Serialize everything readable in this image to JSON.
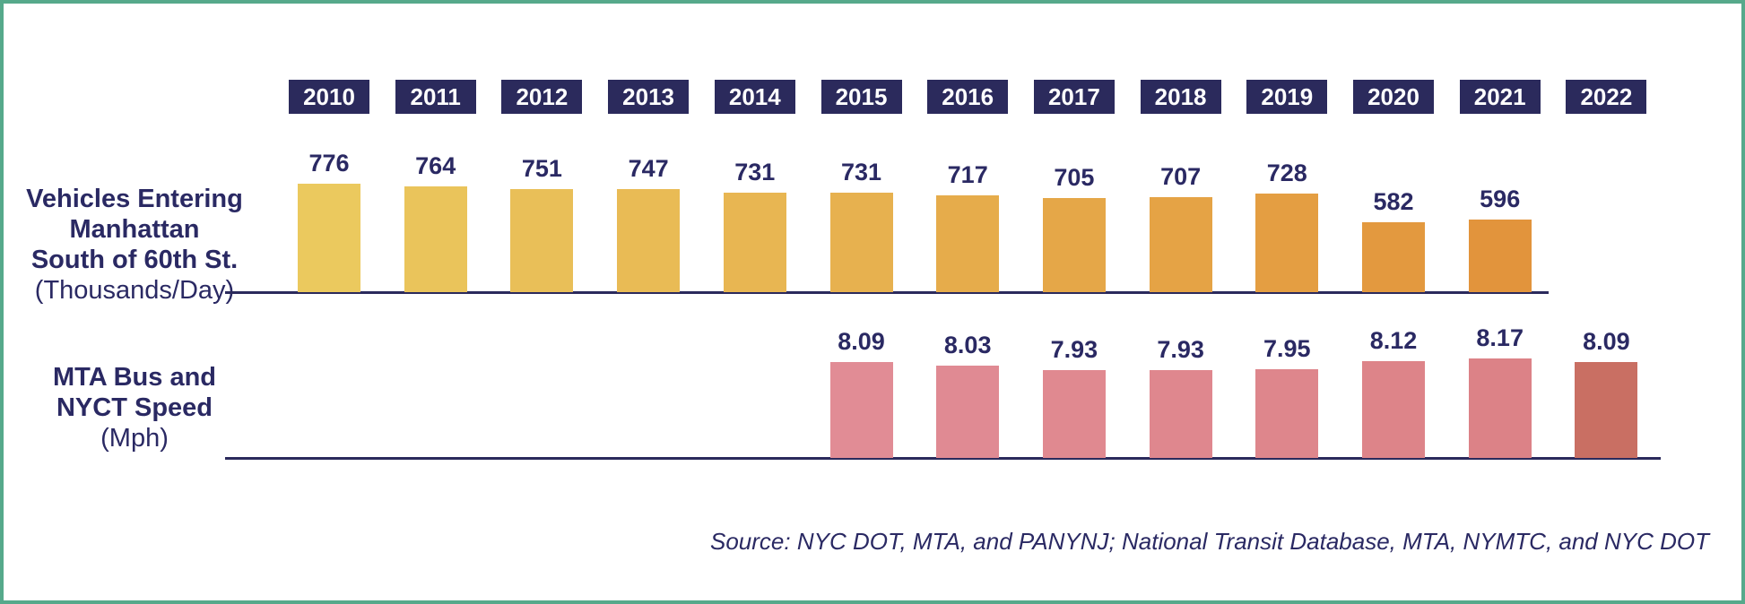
{
  "page": {
    "background_color": "#FFFFFF",
    "border_color": "#56A98B",
    "text_color": "#2A2963",
    "axis_color": "#2B2A5C"
  },
  "years": [
    "2010",
    "2011",
    "2012",
    "2013",
    "2014",
    "2015",
    "2016",
    "2017",
    "2018",
    "2019",
    "2020",
    "2021",
    "2022"
  ],
  "year_badge": {
    "bg_color": "#2B2A5C",
    "text_color": "#FFFFFF"
  },
  "row_labels": [
    {
      "lines": [
        "Vehicles Entering",
        "Manhattan",
        "South of 60th St."
      ],
      "unit": "(Thousands/Day)"
    },
    {
      "lines": [
        "MTA Bus and",
        "NYCT Speed"
      ],
      "unit": "(Mph)"
    }
  ],
  "source_note": "Source: NYC DOT, MTA, and PANYNJ; National Transit Database, MTA, NYMTC, and NYC DOT",
  "chart_data": [
    {
      "type": "bar",
      "title": "Vehicles Entering Manhattan South of 60th St. (Thousands/Day)",
      "categories": [
        "2010",
        "2011",
        "2012",
        "2013",
        "2014",
        "2015",
        "2016",
        "2017",
        "2018",
        "2019",
        "2020",
        "2021"
      ],
      "values": [
        776,
        764,
        751,
        747,
        731,
        731,
        717,
        705,
        707,
        728,
        582,
        596
      ],
      "value_format": "integer",
      "data_labels_position": "above-bars",
      "bar_colors": [
        "#EBC95E",
        "#EAC45B",
        "#E9BF58",
        "#E9BB55",
        "#E8B652",
        "#E7B14F",
        "#E6AC4B",
        "#E5A748",
        "#E5A345",
        "#E49E42",
        "#E3993F",
        "#E2943C"
      ],
      "legend": "none",
      "grid": "off",
      "axis_style": "single horizontal baseline, no ticks, non-zero-based bar scale"
    },
    {
      "type": "bar",
      "title": "MTA Bus and NYCT Speed (Mph)",
      "categories": [
        "2015",
        "2016",
        "2017",
        "2018",
        "2019",
        "2020",
        "2021",
        "2022"
      ],
      "values": [
        8.09,
        8.03,
        7.93,
        7.93,
        7.95,
        8.12,
        8.17,
        8.09
      ],
      "value_format": "two-decimals",
      "data_labels_position": "above-bars",
      "bar_colors": [
        "#E18C95",
        "#E08A93",
        "#E08990",
        "#DF878E",
        "#DE868C",
        "#DD8489",
        "#DC8287",
        "#C96F63"
      ],
      "legend": "none",
      "grid": "off",
      "axis_style": "single horizontal baseline, no ticks, non-zero-based bar scale"
    }
  ]
}
